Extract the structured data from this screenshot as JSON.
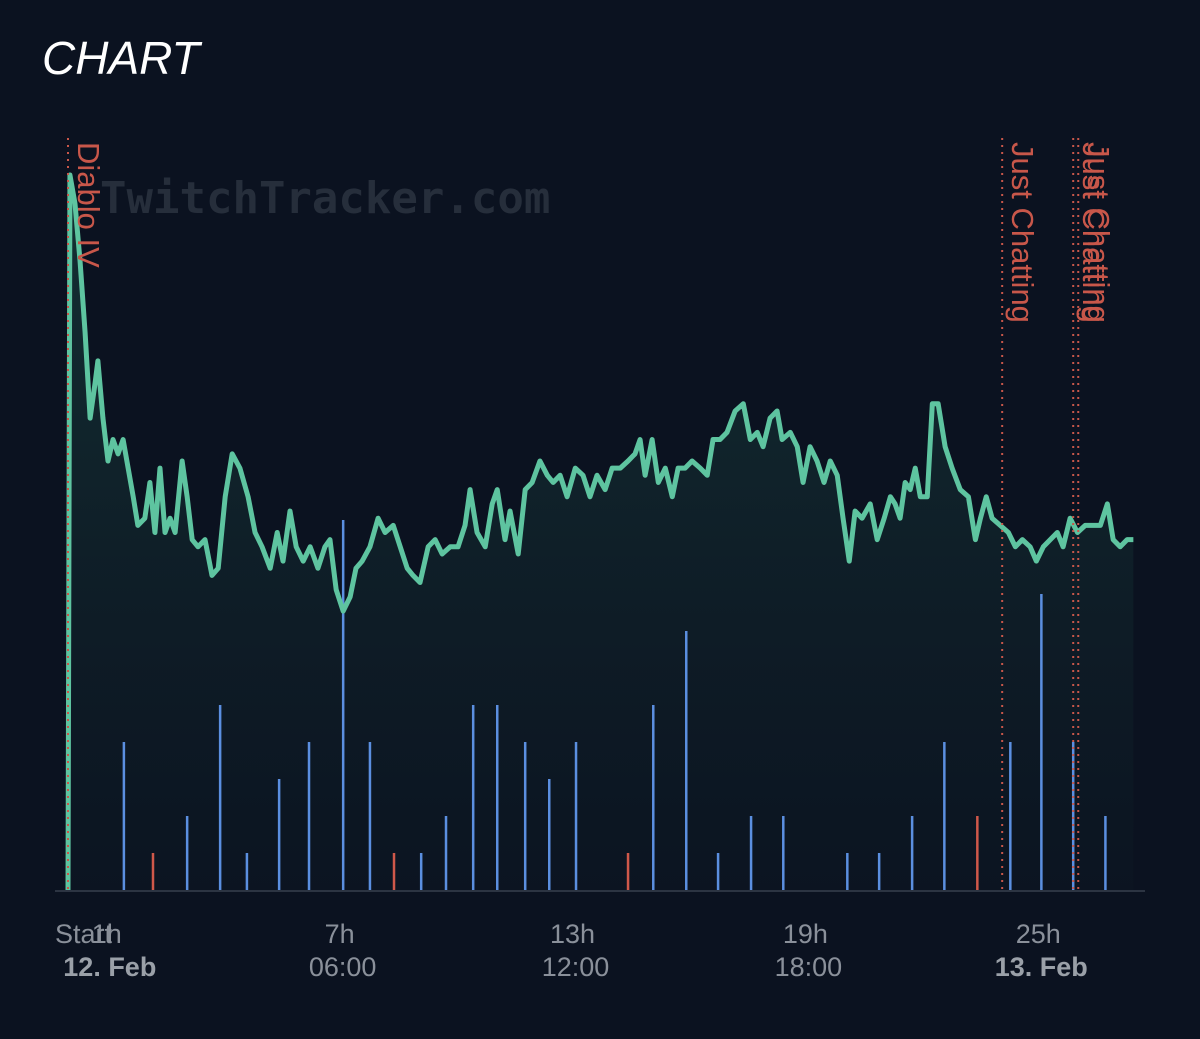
{
  "chart_data": {
    "type": "line",
    "title": "CHART",
    "watermark": "TwitchTracker.com",
    "xlim": [
      0,
      27.75
    ],
    "ylim": [
      0,
      100
    ],
    "y2lim": [
      0,
      20
    ],
    "xticks": [
      {
        "value": 0,
        "label": "Start"
      },
      {
        "value": 1,
        "label": "1h"
      },
      {
        "value": 7,
        "label": "7h"
      },
      {
        "value": 13,
        "label": "13h"
      },
      {
        "value": 19,
        "label": "19h"
      },
      {
        "value": 25,
        "label": "25h"
      }
    ],
    "xticks_secondary": [
      {
        "value": 1,
        "label": "12. Feb",
        "bold": true
      },
      {
        "value": 7,
        "label": "06:00"
      },
      {
        "value": 13,
        "label": "12:00"
      },
      {
        "value": 19,
        "label": "18:00"
      },
      {
        "value": 25,
        "label": "13. Feb",
        "bold": true
      }
    ],
    "annotation_color": "#c8574a",
    "annotations": [
      {
        "x": 0,
        "label": "Diablo IV"
      },
      {
        "x": 24.07,
        "label": "Just Chatting"
      },
      {
        "x": 25.9,
        "label": "Just Chatting"
      },
      {
        "x": 26.03,
        "label": "Just Chatting"
      }
    ],
    "series": [
      {
        "type": "line",
        "color": "#5ec4a0",
        "x": [
          0,
          0.05,
          0.18,
          0.31,
          0.44,
          0.57,
          0.7,
          0.77,
          0.9,
          1.03,
          1.16,
          1.29,
          1.42,
          1.55,
          1.68,
          1.8,
          1.98,
          2.11,
          2.24,
          2.37,
          2.5,
          2.63,
          2.76,
          2.94,
          3.07,
          3.2,
          3.35,
          3.53,
          3.71,
          3.87,
          4.05,
          4.23,
          4.43,
          4.64,
          4.82,
          5.0,
          5.21,
          5.39,
          5.54,
          5.72,
          5.88,
          6.06,
          6.24,
          6.44,
          6.62,
          6.75,
          6.91,
          7.09,
          7.27,
          7.42,
          7.58,
          7.78,
          7.99,
          8.17,
          8.38,
          8.56,
          8.74,
          8.89,
          9.07,
          9.28,
          9.46,
          9.64,
          9.85,
          10.05,
          10.23,
          10.36,
          10.54,
          10.75,
          10.93,
          11.06,
          11.26,
          11.39,
          11.6,
          11.78,
          11.96,
          12.16,
          12.35,
          12.5,
          12.68,
          12.86,
          13.07,
          13.27,
          13.45,
          13.63,
          13.84,
          14.02,
          14.23,
          14.43,
          14.61,
          14.74,
          14.87,
          15.05,
          15.21,
          15.39,
          15.57,
          15.72,
          15.9,
          16.08,
          16.29,
          16.47,
          16.62,
          16.8,
          16.98,
          17.19,
          17.4,
          17.58,
          17.76,
          17.91,
          18.09,
          18.27,
          18.4,
          18.61,
          18.79,
          18.94,
          19.12,
          19.3,
          19.48,
          19.64,
          19.82,
          19.97,
          20.13,
          20.28,
          20.46,
          20.67,
          20.85,
          21.03,
          21.19,
          21.31,
          21.44,
          21.57,
          21.7,
          21.83,
          21.96,
          22.14,
          22.27,
          22.42,
          22.6,
          22.78,
          22.99,
          23.2,
          23.38,
          23.51,
          23.66,
          23.81,
          24.02,
          24.23,
          24.41,
          24.59,
          24.79,
          24.95,
          25.13,
          25.31,
          25.49,
          25.64,
          25.82,
          26.01,
          26.21,
          26.39,
          26.6,
          26.78,
          26.93,
          27.11,
          27.29,
          27.45
        ],
        "values": [
          0,
          100,
          96,
          88,
          78,
          66,
          71,
          74,
          66,
          60,
          63,
          61,
          63,
          59,
          55,
          51,
          52,
          57,
          50,
          59,
          50,
          52,
          50,
          60,
          55,
          49,
          48,
          49,
          44,
          45,
          55,
          61,
          59,
          55,
          50,
          48,
          45,
          50,
          46,
          53,
          48,
          46,
          48,
          45,
          48,
          49,
          42,
          39,
          41,
          45,
          46,
          48,
          52,
          50,
          51,
          48,
          45,
          44,
          43,
          48,
          49,
          47,
          48,
          48,
          51,
          56,
          50,
          48,
          54,
          56,
          49,
          53,
          47,
          56,
          57,
          60,
          58,
          57,
          58,
          55,
          59,
          58,
          55,
          58,
          56,
          59,
          59,
          60,
          61,
          63,
          58,
          63,
          57,
          59,
          55,
          59,
          59,
          60,
          59,
          58,
          63,
          63,
          64,
          67,
          68,
          63,
          64,
          62,
          66,
          67,
          63,
          64,
          62,
          57,
          62,
          60,
          57,
          60,
          58,
          52,
          46,
          53,
          52,
          54,
          49,
          52,
          55,
          54,
          52,
          57,
          56,
          59,
          55,
          55,
          68,
          68,
          62,
          59,
          56,
          55,
          49,
          52,
          55,
          52,
          51,
          50,
          48,
          49,
          48,
          46,
          48,
          49,
          50,
          48,
          52,
          50,
          51,
          51,
          51,
          54,
          49,
          48,
          49,
          49
        ]
      },
      {
        "type": "bar",
        "axis": "y2",
        "color": "#5b8fe0",
        "x": [
          1.44,
          3.07,
          3.92,
          4.61,
          5.44,
          6.21,
          7.09,
          7.78,
          9.1,
          9.74,
          10.44,
          11.06,
          11.78,
          12.4,
          13.09,
          15.08,
          15.93,
          16.75,
          17.6,
          18.43,
          20.08,
          20.9,
          21.75,
          22.58,
          24.28,
          25.08,
          25.9,
          26.73
        ],
        "values": [
          4,
          2,
          5,
          1,
          3,
          4,
          10,
          4,
          1,
          2,
          5,
          5,
          4,
          3,
          4,
          5,
          7,
          1,
          2,
          2,
          1,
          1,
          2,
          4,
          4,
          8,
          4,
          2
        ]
      },
      {
        "type": "bar",
        "axis": "y2",
        "color": "#d0584a",
        "x": [
          2.19,
          8.4,
          14.43,
          23.43
        ],
        "values": [
          1,
          1,
          1,
          2
        ]
      }
    ]
  }
}
